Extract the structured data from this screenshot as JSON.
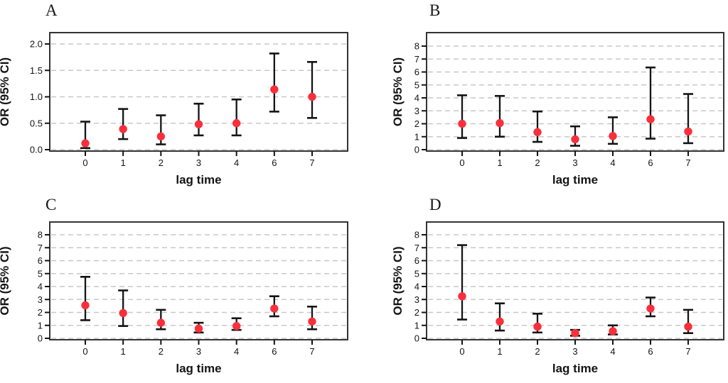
{
  "figure": {
    "style": {
      "point_color": "#f9303c",
      "errorbar_color": "#141414",
      "gridline_color": "#c8c8c8",
      "frame_color": "#333333",
      "background": "#ffffff"
    }
  },
  "chart_data": [
    {
      "type": "scatter",
      "panel_label": "A",
      "xlabel": "lag time",
      "ylabel": "OR (95% CI)",
      "categories": [
        "0",
        "1",
        "2",
        "3",
        "4",
        "6",
        "7"
      ],
      "ytick_labels": [
        "0.0",
        "0.5",
        "1.0",
        "1.5",
        "2.0"
      ],
      "yticks": [
        0,
        0.5,
        1.0,
        1.5,
        2.0
      ],
      "ylim": [
        0,
        2.2
      ],
      "grid": true,
      "series": [
        {
          "name": "OR",
          "values": [
            0.12,
            0.39,
            0.25,
            0.48,
            0.5,
            1.14,
            1.0
          ]
        },
        {
          "name": "ci_low",
          "values": [
            0.03,
            0.2,
            0.1,
            0.27,
            0.27,
            0.72,
            0.6
          ]
        },
        {
          "name": "ci_high",
          "values": [
            0.53,
            0.77,
            0.65,
            0.87,
            0.95,
            1.82,
            1.66
          ]
        }
      ]
    },
    {
      "type": "scatter",
      "panel_label": "B",
      "xlabel": "lag time",
      "ylabel": "OR (95% CI)",
      "categories": [
        "0",
        "1",
        "2",
        "3",
        "4",
        "6",
        "7"
      ],
      "ytick_labels": [
        "0",
        "1",
        "2",
        "3",
        "4",
        "5",
        "6",
        "7",
        "8"
      ],
      "yticks": [
        0,
        1,
        2,
        3,
        4,
        5,
        6,
        7,
        8
      ],
      "ylim": [
        0,
        9
      ],
      "grid": true,
      "series": [
        {
          "name": "OR",
          "values": [
            2.0,
            2.05,
            1.35,
            0.8,
            1.05,
            2.35,
            1.4
          ]
        },
        {
          "name": "ci_low",
          "values": [
            0.9,
            1.0,
            0.6,
            0.3,
            0.45,
            0.85,
            0.5
          ]
        },
        {
          "name": "ci_high",
          "values": [
            4.2,
            4.15,
            2.95,
            1.8,
            2.5,
            6.35,
            4.3
          ]
        }
      ]
    },
    {
      "type": "scatter",
      "panel_label": "C",
      "xlabel": "lag time",
      "ylabel": "OR (95% CI)",
      "categories": [
        "0",
        "1",
        "2",
        "3",
        "4",
        "6",
        "7"
      ],
      "ytick_labels": [
        "0",
        "1",
        "2",
        "3",
        "4",
        "5",
        "6",
        "7",
        "8"
      ],
      "yticks": [
        0,
        1,
        2,
        3,
        4,
        5,
        6,
        7,
        8
      ],
      "ylim": [
        0,
        9
      ],
      "grid": true,
      "series": [
        {
          "name": "OR",
          "values": [
            2.55,
            1.95,
            1.2,
            0.75,
            0.95,
            2.3,
            1.3
          ]
        },
        {
          "name": "ci_low",
          "values": [
            1.4,
            0.95,
            0.7,
            0.45,
            0.65,
            1.7,
            0.7
          ]
        },
        {
          "name": "ci_high",
          "values": [
            4.75,
            3.7,
            2.2,
            1.2,
            1.55,
            3.25,
            2.45
          ]
        }
      ]
    },
    {
      "type": "scatter",
      "panel_label": "D",
      "xlabel": "lag time",
      "ylabel": "OR (95% CI)",
      "categories": [
        "0",
        "1",
        "2",
        "3",
        "4",
        "6",
        "7"
      ],
      "ytick_labels": [
        "0",
        "1",
        "2",
        "3",
        "4",
        "5",
        "6",
        "7",
        "8"
      ],
      "yticks": [
        0,
        1,
        2,
        3,
        4,
        5,
        6,
        7,
        8
      ],
      "ylim": [
        0,
        9
      ],
      "grid": true,
      "series": [
        {
          "name": "OR",
          "values": [
            3.25,
            1.3,
            0.9,
            0.4,
            0.55,
            2.3,
            0.9
          ]
        },
        {
          "name": "ci_low",
          "values": [
            1.45,
            0.6,
            0.45,
            0.2,
            0.3,
            1.7,
            0.4
          ]
        },
        {
          "name": "ci_high",
          "values": [
            7.2,
            2.7,
            1.9,
            0.65,
            1.0,
            3.15,
            2.2
          ]
        }
      ]
    }
  ]
}
